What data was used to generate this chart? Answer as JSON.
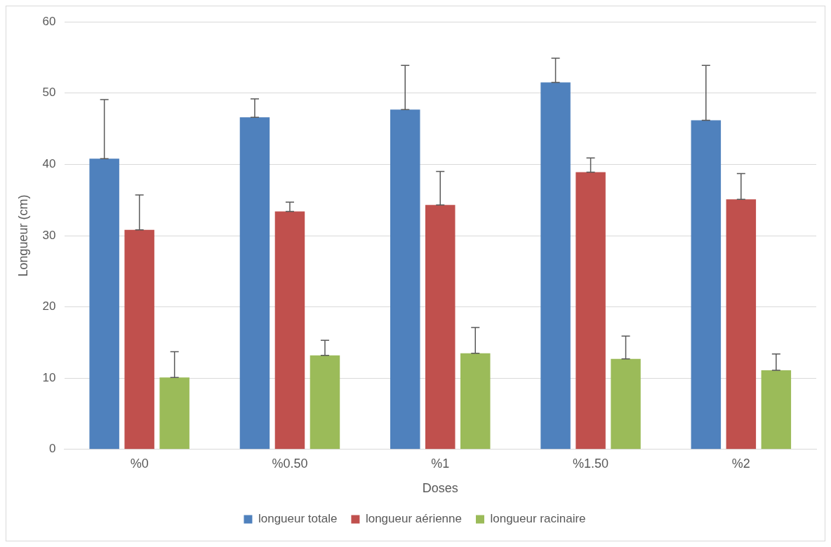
{
  "chart_data": {
    "type": "bar",
    "xlabel": "Doses",
    "ylabel": "Longueur (cm)",
    "categories": [
      "%0",
      "%0.50",
      "%1",
      "%1.50",
      "%2"
    ],
    "series": [
      {
        "name": "longueur totale",
        "color": "#4f81bd",
        "values": [
          40.8,
          46.6,
          47.7,
          51.5,
          46.2
        ],
        "errors": [
          [
            40.8,
            49.1
          ],
          [
            46.6,
            49.2
          ],
          [
            47.7,
            53.9
          ],
          [
            51.5,
            54.9
          ],
          [
            46.2,
            53.9
          ]
        ]
      },
      {
        "name": "longueur aérienne",
        "color": "#c0504d",
        "values": [
          30.8,
          33.4,
          34.3,
          38.9,
          35.1
        ],
        "errors": [
          [
            30.8,
            35.7
          ],
          [
            33.4,
            34.7
          ],
          [
            34.3,
            39.0
          ],
          [
            38.9,
            40.9
          ],
          [
            35.1,
            38.7
          ]
        ]
      },
      {
        "name": "longueur racinaire",
        "color": "#9bbb59",
        "values": [
          10.1,
          13.2,
          13.5,
          12.7,
          11.1
        ],
        "errors": [
          [
            10.1,
            13.7
          ],
          [
            13.2,
            15.3
          ],
          [
            13.5,
            17.1
          ],
          [
            12.7,
            15.9
          ],
          [
            11.1,
            13.4
          ]
        ]
      }
    ],
    "ylim": [
      0,
      60
    ],
    "yticks": [
      0,
      10,
      20,
      30,
      40,
      50,
      60
    ],
    "grid": "y",
    "legend": "bottom"
  }
}
